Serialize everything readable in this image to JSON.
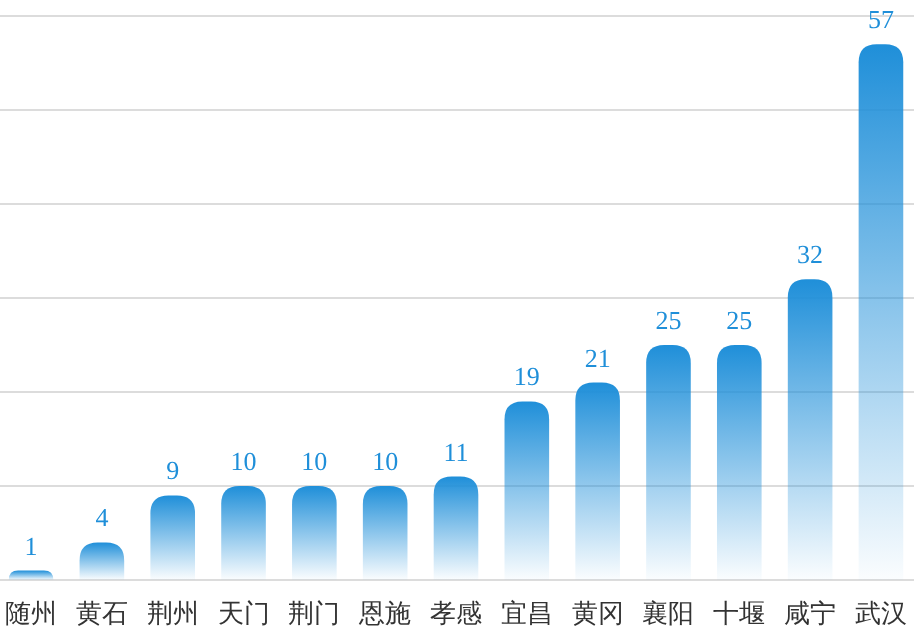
{
  "chart_data": {
    "type": "bar",
    "categories": [
      "随州",
      "黄石",
      "荆州",
      "天门",
      "荆门",
      "恩施",
      "孝感",
      "宜昌",
      "黄冈",
      "襄阳",
      "十堰",
      "咸宁",
      "武汉"
    ],
    "values": [
      1,
      4,
      9,
      10,
      10,
      10,
      11,
      19,
      21,
      25,
      25,
      32,
      57
    ],
    "color": "#1f8fd9",
    "ylim": [
      0,
      60
    ],
    "yticks": [
      {
        "value": 0,
        "label": null
      },
      {
        "value": 10,
        "label": null
      },
      {
        "value": 20,
        "label": null
      },
      {
        "value": 30,
        "label": null
      },
      {
        "value": 40,
        "label": null
      },
      {
        "value": 50,
        "label": null
      },
      {
        "value": 60,
        "label": null
      }
    ],
    "grid": "y",
    "tick_labels": "x",
    "data_labels": true
  }
}
